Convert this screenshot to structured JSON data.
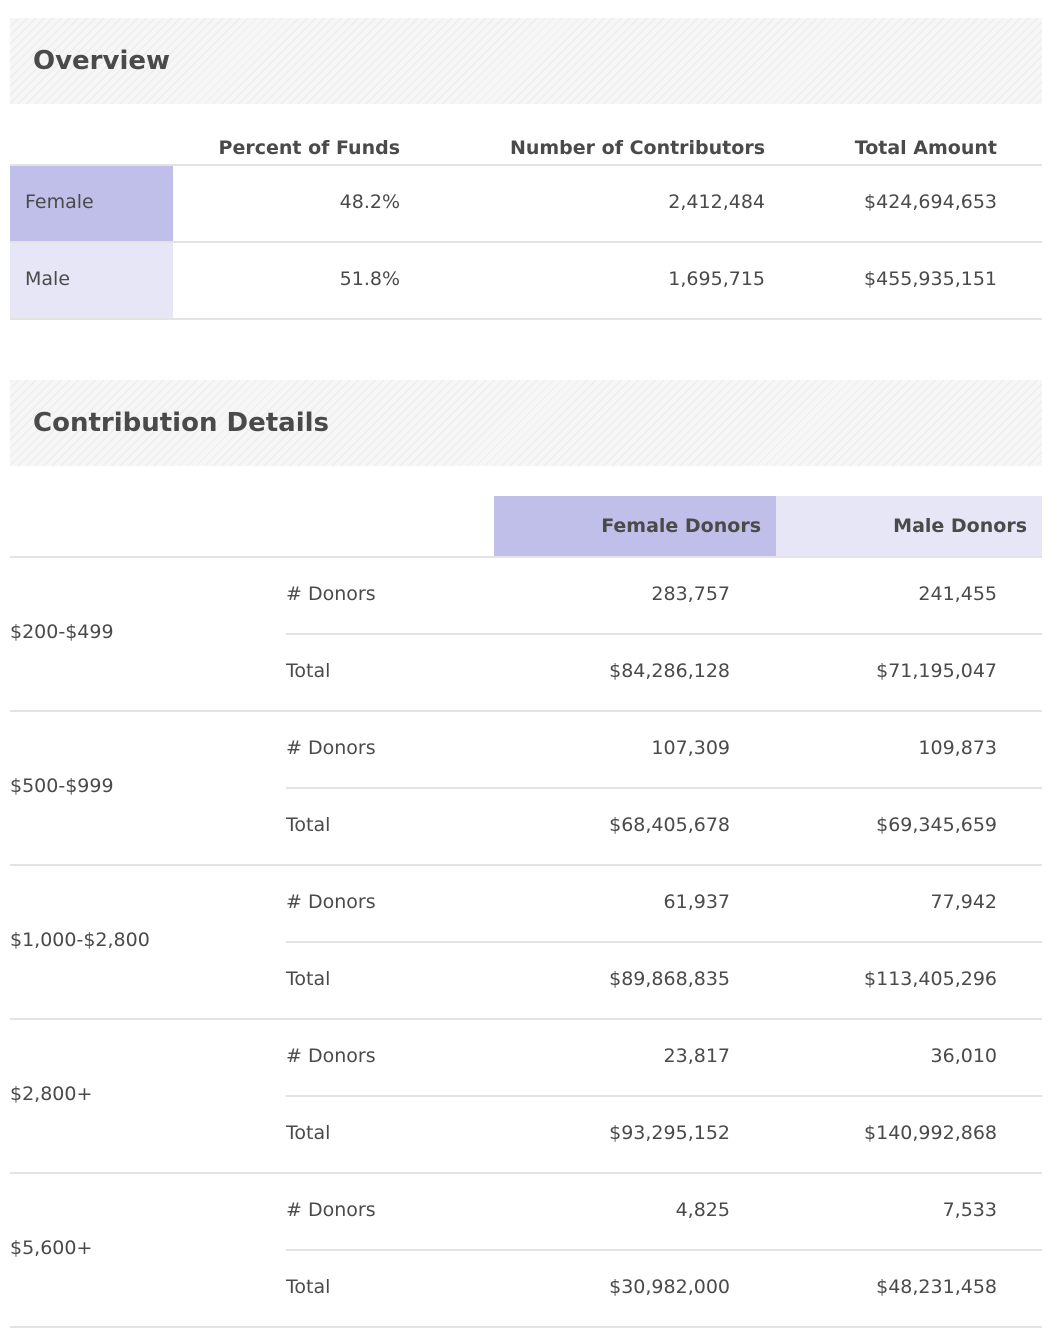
{
  "overview": {
    "title": "Overview",
    "columns": [
      "Percent of Funds",
      "Number of Contributors",
      "Total Amount"
    ],
    "rows": [
      {
        "label": "Female",
        "percent": "48.2%",
        "contributors": "2,412,484",
        "total": "$424,694,653",
        "color": "#bfbfe9"
      },
      {
        "label": "Male",
        "percent": "51.8%",
        "contributors": "1,695,715",
        "total": "$455,935,151",
        "color": "#e6e6f6"
      }
    ]
  },
  "details": {
    "title": "Contribution Details",
    "columns": [
      "Female Donors",
      "Male Donors"
    ],
    "column_colors": [
      "#bfbfe9",
      "#e6e6f6"
    ],
    "groups": [
      {
        "range": "$200-$499",
        "rows": [
          {
            "label": "# Donors",
            "female": "283,757",
            "male": "241,455"
          },
          {
            "label": "Total",
            "female": "$84,286,128",
            "male": "$71,195,047"
          }
        ]
      },
      {
        "range": "$500-$999",
        "rows": [
          {
            "label": "# Donors",
            "female": "107,309",
            "male": "109,873"
          },
          {
            "label": "Total",
            "female": "$68,405,678",
            "male": "$69,345,659"
          }
        ]
      },
      {
        "range": "$1,000-$2,800",
        "rows": [
          {
            "label": "# Donors",
            "female": "61,937",
            "male": "77,942"
          },
          {
            "label": "Total",
            "female": "$89,868,835",
            "male": "$113,405,296"
          }
        ]
      },
      {
        "range": "$2,800+",
        "rows": [
          {
            "label": "# Donors",
            "female": "23,817",
            "male": "36,010"
          },
          {
            "label": "Total",
            "female": "$93,295,152",
            "male": "$140,992,868"
          }
        ]
      },
      {
        "range": "$5,600+",
        "rows": [
          {
            "label": "# Donors",
            "female": "4,825",
            "male": "7,533"
          },
          {
            "label": "Total",
            "female": "$30,982,000",
            "male": "$48,231,458"
          }
        ]
      }
    ]
  }
}
